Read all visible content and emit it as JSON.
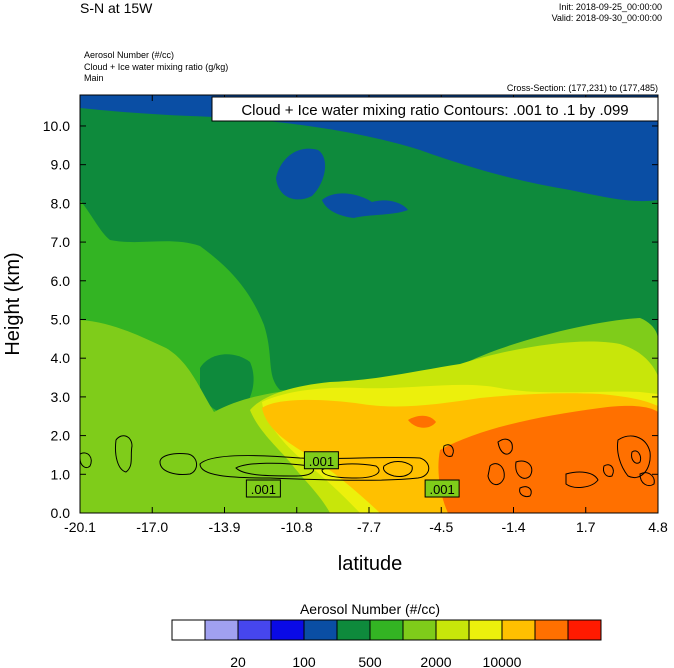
{
  "header": {
    "title": "S-N at 15W",
    "init": "Init: 2018-09-25_00:00:00",
    "valid": "Valid: 2018-09-30_00:00:00",
    "variable_1": "Aerosol Number   (#/cc)",
    "variable_2": "Cloud + Ice water mixing ratio   (g/kg)",
    "variable_3": "Main",
    "cross_section": "Cross-Section: (177,231) to (177,485)"
  },
  "chart_data": {
    "type": "heatmap",
    "contour_title": "Cloud + Ice water mixing ratio Contours: .001 to .1 by .099",
    "xlabel": "latitude",
    "ylabel": "Height (km)",
    "xlim": [
      -20.1,
      4.8
    ],
    "ylim": [
      0.0,
      10.8
    ],
    "x_ticks": [
      "-20.1",
      "-17.0",
      "-13.9",
      "-10.8",
      "-7.7",
      "-4.5",
      "-1.4",
      "1.7",
      "4.8"
    ],
    "y_ticks": [
      "0.0",
      "1.0",
      "2.0",
      "3.0",
      "4.0",
      "5.0",
      "6.0",
      "7.0",
      "8.0",
      "9.0",
      "10.0"
    ],
    "contour_labels": [
      {
        "text": ".001",
        "x": -9.7,
        "y": 1.35
      },
      {
        "text": ".001",
        "x": -12.2,
        "y": 0.62
      },
      {
        "text": ".001",
        "x": -4.5,
        "y": 0.62
      }
    ],
    "colorbar": {
      "title": "Aerosol Number  (#/cc)",
      "colors": [
        "#ffffff",
        "#a0a0f0",
        "#4646ee",
        "#0a0ae6",
        "#0a4ea4",
        "#0e8a3c",
        "#33b423",
        "#7fcc1a",
        "#c8e60a",
        "#ecf00c",
        "#ffc000",
        "#ff7000",
        "#ff1a00"
      ],
      "labels": [
        {
          "text": "20",
          "after_box": 2
        },
        {
          "text": "100",
          "after_box": 4
        },
        {
          "text": "500",
          "after_box": 6
        },
        {
          "text": "2000",
          "after_box": 8
        },
        {
          "text": "10000",
          "after_box": 10
        }
      ]
    }
  }
}
